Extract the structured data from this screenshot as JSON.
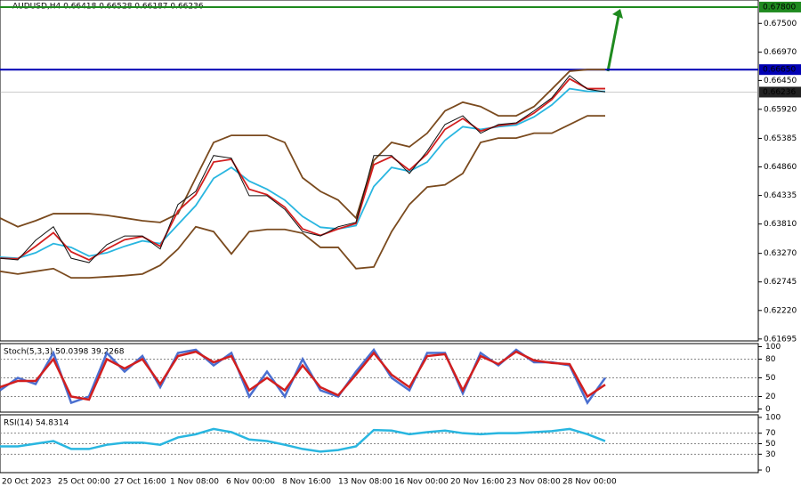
{
  "chart_data": {
    "type": "line",
    "title": "AUDUSD,H4  0.66418 0.66528 0.66187 0.66236",
    "ylim": [
      0.6166,
      0.6793
    ],
    "yticks": [
      {
        "value": 0.675,
        "label": "0.67500"
      },
      {
        "value": 0.6697,
        "label": "0.66970"
      },
      {
        "value": 0.6645,
        "label": "0.66450"
      },
      {
        "value": 0.6592,
        "label": "0.65920"
      },
      {
        "value": 0.65385,
        "label": "0.65385"
      },
      {
        "value": 0.6486,
        "label": "0.64860"
      },
      {
        "value": 0.64335,
        "label": "0.64335"
      },
      {
        "value": 0.6381,
        "label": "0.63810"
      },
      {
        "value": 0.6327,
        "label": "0.63270"
      },
      {
        "value": 0.62745,
        "label": "0.62745"
      },
      {
        "value": 0.6222,
        "label": "0.62220"
      },
      {
        "value": 0.61695,
        "label": "0.61695"
      }
    ],
    "levels": [
      {
        "value": 0.678,
        "label": "0.67800",
        "color": "#1f8a1f"
      },
      {
        "value": 0.6665,
        "label": "0.66650",
        "color": "#0000b4"
      }
    ],
    "last": {
      "value": 0.66236,
      "label": "0.66236",
      "color": "#222222"
    },
    "xlabels": [
      "20 Oct 2023",
      "25 Oct 00:00",
      "27 Oct 16:00",
      "1 Nov 08:00",
      "6 Nov 00:00",
      "8 Nov 16:00",
      "13 Nov 08:00",
      "16 Nov 00:00",
      "20 Nov 16:00",
      "23 Nov 08:00",
      "28 Nov 00:00"
    ],
    "series": [
      {
        "color": "#7a4a1e",
        "values": [
          0.6392,
          0.6376,
          0.6387,
          0.64,
          0.64,
          0.64,
          0.6397,
          0.6392,
          0.6387,
          0.6384,
          0.64,
          0.6466,
          0.6531,
          0.6544,
          0.6544,
          0.6544,
          0.6531,
          0.6466,
          0.6441,
          0.6425,
          0.6392,
          0.6498,
          0.6531,
          0.6523,
          0.6548,
          0.6589,
          0.6605,
          0.6597,
          0.658,
          0.658,
          0.6597,
          0.6629,
          0.6662,
          0.6665,
          0.6665
        ]
      },
      {
        "color": "#7a4a1e",
        "values": [
          0.6294,
          0.6289,
          0.6294,
          0.6299,
          0.6282,
          0.6282,
          0.6284,
          0.6286,
          0.6289,
          0.6305,
          0.6335,
          0.6376,
          0.6367,
          0.6326,
          0.6367,
          0.6371,
          0.6371,
          0.6364,
          0.6338,
          0.6338,
          0.6299,
          0.6302,
          0.6367,
          0.6417,
          0.6449,
          0.6453,
          0.6474,
          0.6531,
          0.6539,
          0.6539,
          0.6548,
          0.6548,
          0.6564,
          0.658,
          0.658
        ]
      },
      {
        "color": "#29b6e0",
        "values": [
          0.632,
          0.6318,
          0.6328,
          0.6345,
          0.6338,
          0.6322,
          0.6328,
          0.634,
          0.635,
          0.6345,
          0.638,
          0.6415,
          0.6465,
          0.6485,
          0.646,
          0.6445,
          0.6425,
          0.6395,
          0.6375,
          0.6372,
          0.6378,
          0.645,
          0.6485,
          0.6478,
          0.6495,
          0.6535,
          0.656,
          0.6555,
          0.656,
          0.6563,
          0.6578,
          0.66,
          0.663,
          0.6625,
          0.6625
        ]
      },
      {
        "color": "#d21f1f",
        "values": [
          0.6318,
          0.6317,
          0.634,
          0.6365,
          0.633,
          0.6315,
          0.6335,
          0.6352,
          0.6358,
          0.634,
          0.6405,
          0.6435,
          0.6495,
          0.65,
          0.6445,
          0.6435,
          0.6412,
          0.6372,
          0.636,
          0.6372,
          0.6382,
          0.649,
          0.6505,
          0.648,
          0.651,
          0.6555,
          0.6575,
          0.6552,
          0.6562,
          0.6566,
          0.6585,
          0.661,
          0.6648,
          0.663,
          0.663
        ]
      },
      {
        "color": "#111111",
        "values": [
          0.6318,
          0.6315,
          0.6351,
          0.6376,
          0.6318,
          0.631,
          0.6343,
          0.6359,
          0.6359,
          0.6335,
          0.6417,
          0.6441,
          0.6507,
          0.6502,
          0.6433,
          0.6433,
          0.6408,
          0.6367,
          0.6359,
          0.6376,
          0.6384,
          0.6507,
          0.6507,
          0.6474,
          0.6515,
          0.6564,
          0.658,
          0.6548,
          0.6564,
          0.6567,
          0.6589,
          0.6613,
          0.6654,
          0.6629,
          0.6624
        ]
      }
    ],
    "stoch": {
      "label": "Stoch(5,3,3) 50.0398 39.2268",
      "ylim": [
        -5,
        105
      ],
      "yticks": [
        0,
        20,
        50,
        80,
        100
      ],
      "levels": [
        20,
        50,
        80
      ],
      "series": [
        {
          "color": "#4a6fd0",
          "values": [
            30,
            50,
            40,
            90,
            10,
            20,
            90,
            60,
            85,
            35,
            90,
            95,
            70,
            90,
            20,
            60,
            20,
            80,
            30,
            20,
            60,
            95,
            50,
            30,
            90,
            90,
            25,
            90,
            70,
            95,
            75,
            75,
            70,
            10,
            50
          ]
        },
        {
          "color": "#d21f1f",
          "values": [
            35,
            45,
            45,
            80,
            20,
            15,
            80,
            65,
            80,
            40,
            85,
            92,
            75,
            85,
            30,
            50,
            30,
            70,
            35,
            22,
            55,
            90,
            55,
            35,
            85,
            88,
            30,
            85,
            72,
            92,
            78,
            74,
            72,
            20,
            39
          ]
        }
      ]
    },
    "rsi": {
      "label": "RSI(14) 54.8314",
      "ylim": [
        -5,
        105
      ],
      "yticks": [
        0,
        30,
        50,
        70,
        100
      ],
      "levels": [
        30,
        50,
        70
      ],
      "series": [
        {
          "color": "#29b6e0",
          "values": [
            45,
            45,
            50,
            55,
            40,
            40,
            48,
            52,
            52,
            48,
            62,
            68,
            78,
            72,
            58,
            55,
            48,
            40,
            35,
            38,
            45,
            76,
            75,
            68,
            72,
            75,
            70,
            68,
            70,
            70,
            72,
            74,
            78,
            68,
            55
          ]
        }
      ]
    }
  }
}
